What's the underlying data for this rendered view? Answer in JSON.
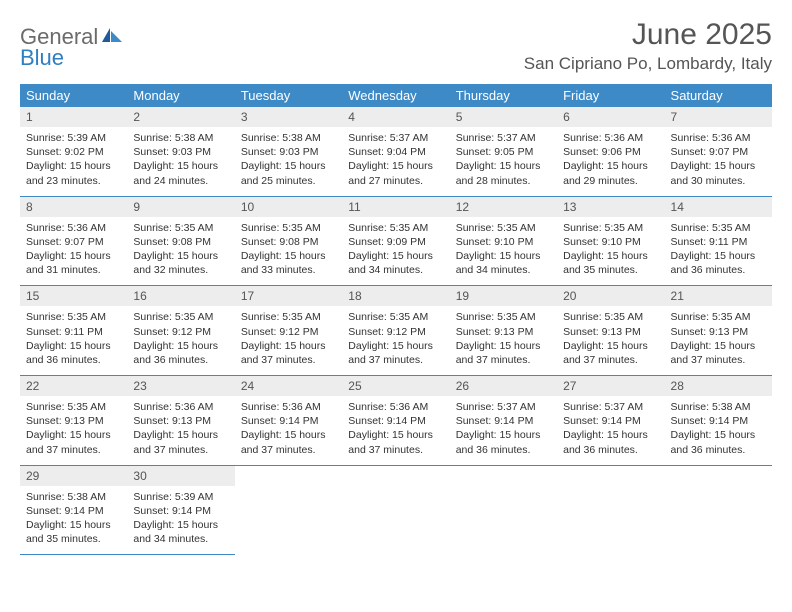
{
  "brand": {
    "word1": "General",
    "word2": "Blue",
    "word1_color": "#6b6b6b",
    "word2_color": "#2f7fc1",
    "icon_color_dark": "#1f5a9a",
    "icon_color_light": "#3d8ac7"
  },
  "title": "June 2025",
  "location": "San Cipriano Po, Lombardy, Italy",
  "colors": {
    "header_bg": "#3d8ac7",
    "header_text": "#ffffff",
    "daynum_bg": "#ededed",
    "daynum_text": "#555555",
    "body_text": "#333333",
    "title_text": "#555555",
    "rule": "#3d8ac7",
    "page_bg": "#ffffff"
  },
  "typography": {
    "title_fontsize": 30,
    "location_fontsize": 17,
    "weekday_fontsize": 13,
    "daynum_fontsize": 12,
    "cell_fontsize": 10.5
  },
  "weekdays": [
    "Sunday",
    "Monday",
    "Tuesday",
    "Wednesday",
    "Thursday",
    "Friday",
    "Saturday"
  ],
  "weeks": [
    [
      {
        "n": "1",
        "sr": "5:39 AM",
        "ss": "9:02 PM",
        "dl": "15 hours and 23 minutes."
      },
      {
        "n": "2",
        "sr": "5:38 AM",
        "ss": "9:03 PM",
        "dl": "15 hours and 24 minutes."
      },
      {
        "n": "3",
        "sr": "5:38 AM",
        "ss": "9:03 PM",
        "dl": "15 hours and 25 minutes."
      },
      {
        "n": "4",
        "sr": "5:37 AM",
        "ss": "9:04 PM",
        "dl": "15 hours and 27 minutes."
      },
      {
        "n": "5",
        "sr": "5:37 AM",
        "ss": "9:05 PM",
        "dl": "15 hours and 28 minutes."
      },
      {
        "n": "6",
        "sr": "5:36 AM",
        "ss": "9:06 PM",
        "dl": "15 hours and 29 minutes."
      },
      {
        "n": "7",
        "sr": "5:36 AM",
        "ss": "9:07 PM",
        "dl": "15 hours and 30 minutes."
      }
    ],
    [
      {
        "n": "8",
        "sr": "5:36 AM",
        "ss": "9:07 PM",
        "dl": "15 hours and 31 minutes."
      },
      {
        "n": "9",
        "sr": "5:35 AM",
        "ss": "9:08 PM",
        "dl": "15 hours and 32 minutes."
      },
      {
        "n": "10",
        "sr": "5:35 AM",
        "ss": "9:08 PM",
        "dl": "15 hours and 33 minutes."
      },
      {
        "n": "11",
        "sr": "5:35 AM",
        "ss": "9:09 PM",
        "dl": "15 hours and 34 minutes."
      },
      {
        "n": "12",
        "sr": "5:35 AM",
        "ss": "9:10 PM",
        "dl": "15 hours and 34 minutes."
      },
      {
        "n": "13",
        "sr": "5:35 AM",
        "ss": "9:10 PM",
        "dl": "15 hours and 35 minutes."
      },
      {
        "n": "14",
        "sr": "5:35 AM",
        "ss": "9:11 PM",
        "dl": "15 hours and 36 minutes."
      }
    ],
    [
      {
        "n": "15",
        "sr": "5:35 AM",
        "ss": "9:11 PM",
        "dl": "15 hours and 36 minutes."
      },
      {
        "n": "16",
        "sr": "5:35 AM",
        "ss": "9:12 PM",
        "dl": "15 hours and 36 minutes."
      },
      {
        "n": "17",
        "sr": "5:35 AM",
        "ss": "9:12 PM",
        "dl": "15 hours and 37 minutes."
      },
      {
        "n": "18",
        "sr": "5:35 AM",
        "ss": "9:12 PM",
        "dl": "15 hours and 37 minutes."
      },
      {
        "n": "19",
        "sr": "5:35 AM",
        "ss": "9:13 PM",
        "dl": "15 hours and 37 minutes."
      },
      {
        "n": "20",
        "sr": "5:35 AM",
        "ss": "9:13 PM",
        "dl": "15 hours and 37 minutes."
      },
      {
        "n": "21",
        "sr": "5:35 AM",
        "ss": "9:13 PM",
        "dl": "15 hours and 37 minutes."
      }
    ],
    [
      {
        "n": "22",
        "sr": "5:35 AM",
        "ss": "9:13 PM",
        "dl": "15 hours and 37 minutes."
      },
      {
        "n": "23",
        "sr": "5:36 AM",
        "ss": "9:13 PM",
        "dl": "15 hours and 37 minutes."
      },
      {
        "n": "24",
        "sr": "5:36 AM",
        "ss": "9:14 PM",
        "dl": "15 hours and 37 minutes."
      },
      {
        "n": "25",
        "sr": "5:36 AM",
        "ss": "9:14 PM",
        "dl": "15 hours and 37 minutes."
      },
      {
        "n": "26",
        "sr": "5:37 AM",
        "ss": "9:14 PM",
        "dl": "15 hours and 36 minutes."
      },
      {
        "n": "27",
        "sr": "5:37 AM",
        "ss": "9:14 PM",
        "dl": "15 hours and 36 minutes."
      },
      {
        "n": "28",
        "sr": "5:38 AM",
        "ss": "9:14 PM",
        "dl": "15 hours and 36 minutes."
      }
    ],
    [
      {
        "n": "29",
        "sr": "5:38 AM",
        "ss": "9:14 PM",
        "dl": "15 hours and 35 minutes."
      },
      {
        "n": "30",
        "sr": "5:39 AM",
        "ss": "9:14 PM",
        "dl": "15 hours and 34 minutes."
      },
      null,
      null,
      null,
      null,
      null
    ]
  ],
  "labels": {
    "sunrise": "Sunrise:",
    "sunset": "Sunset:",
    "daylight": "Daylight:"
  }
}
